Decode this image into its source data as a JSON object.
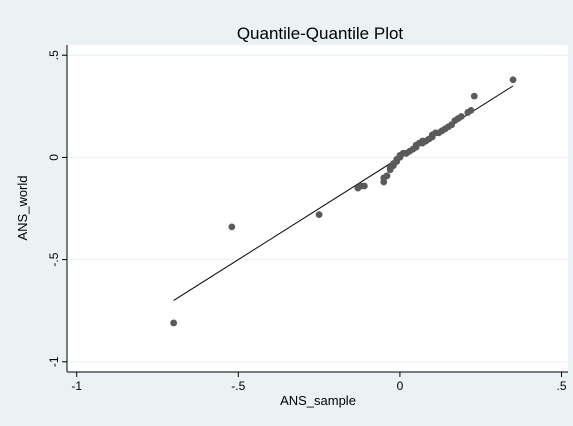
{
  "chart_data": {
    "type": "scatter",
    "title": "Quantile-Quantile Plot",
    "xlabel": "ANS_sample",
    "ylabel": "ANS_world",
    "xlim": [
      -1.03,
      0.52
    ],
    "ylim": [
      -1.05,
      0.55
    ],
    "xticks": [
      -1,
      -0.5,
      0,
      0.5
    ],
    "xtick_labels": [
      "-1",
      "-.5",
      "0",
      ".5"
    ],
    "yticks": [
      -1,
      -0.5,
      0,
      0.5
    ],
    "ytick_labels": [
      "-1",
      "-.5",
      "0",
      ".5"
    ],
    "grid": "horizontal",
    "points": [
      [
        -0.7,
        -0.81
      ],
      [
        -0.52,
        -0.34
      ],
      [
        -0.25,
        -0.28
      ],
      [
        -0.13,
        -0.15
      ],
      [
        -0.12,
        -0.14
      ],
      [
        -0.11,
        -0.14
      ],
      [
        -0.05,
        -0.12
      ],
      [
        -0.05,
        -0.1
      ],
      [
        -0.04,
        -0.09
      ],
      [
        -0.03,
        -0.06
      ],
      [
        -0.03,
        -0.05
      ],
      [
        -0.02,
        -0.04
      ],
      [
        -0.02,
        -0.03
      ],
      [
        -0.01,
        -0.02
      ],
      [
        -0.01,
        -0.01
      ],
      [
        0.0,
        0.0
      ],
      [
        0.0,
        0.01
      ],
      [
        0.01,
        0.02
      ],
      [
        0.02,
        0.02
      ],
      [
        0.03,
        0.03
      ],
      [
        0.04,
        0.04
      ],
      [
        0.05,
        0.05
      ],
      [
        0.05,
        0.06
      ],
      [
        0.06,
        0.07
      ],
      [
        0.07,
        0.07
      ],
      [
        0.07,
        0.08
      ],
      [
        0.08,
        0.08
      ],
      [
        0.09,
        0.09
      ],
      [
        0.1,
        0.1
      ],
      [
        0.1,
        0.11
      ],
      [
        0.11,
        0.12
      ],
      [
        0.12,
        0.12
      ],
      [
        0.13,
        0.13
      ],
      [
        0.14,
        0.14
      ],
      [
        0.15,
        0.15
      ],
      [
        0.16,
        0.16
      ],
      [
        0.17,
        0.18
      ],
      [
        0.18,
        0.19
      ],
      [
        0.19,
        0.2
      ],
      [
        0.21,
        0.22
      ],
      [
        0.22,
        0.23
      ],
      [
        0.23,
        0.3
      ],
      [
        0.35,
        0.38
      ]
    ],
    "fit_line": [
      [
        -0.7,
        -0.7
      ],
      [
        0.35,
        0.35
      ]
    ],
    "colors": {
      "background": "#eaf2f3",
      "plot_area": "#ffffff",
      "grid": "#eaf2f3",
      "marker": "#5a5a5a",
      "line": "#000000"
    }
  }
}
